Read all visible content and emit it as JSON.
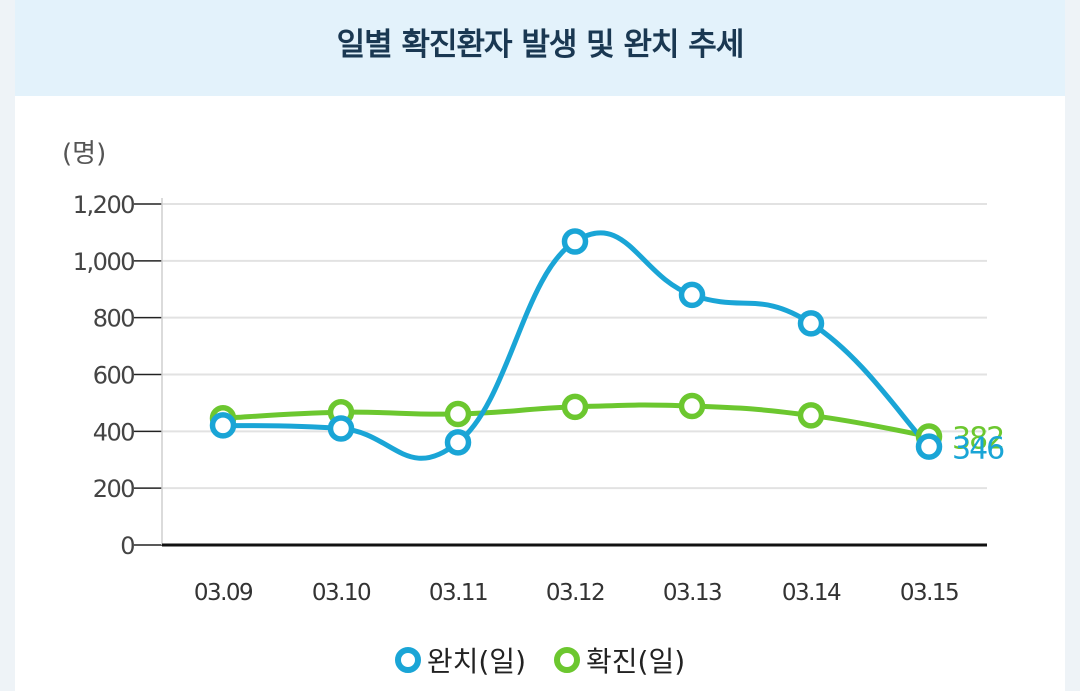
{
  "title": "일별 확진환자 발생 및 완치 추세",
  "colors": {
    "recovered": "#1aa5d6",
    "confirmed": "#6cc72f",
    "header_bg": "#e3f2fb",
    "title": "#1a3852"
  },
  "legend": [
    {
      "label": "완치(일)",
      "color": "#1aa5d6",
      "icon": "circle-marker"
    },
    {
      "label": "확진(일)",
      "color": "#6cc72f",
      "icon": "circle-marker"
    }
  ],
  "chart_data": {
    "type": "line",
    "title": "일별 확진환자 발생 및 완치 추세",
    "ylabel": "(명)",
    "xlabel": "",
    "categories": [
      "03.09",
      "03.10",
      "03.11",
      "03.12",
      "03.13",
      "03.14",
      "03.15"
    ],
    "ylim": [
      0,
      1200
    ],
    "yticks": [
      0,
      200,
      400,
      600,
      800,
      1000,
      1200
    ],
    "ytick_labels": [
      "0",
      "200",
      "400",
      "600",
      "800",
      "1,000",
      "1,200"
    ],
    "grid": true,
    "legend_position": "bottom",
    "series": [
      {
        "name": "완치(일)",
        "color": "#1aa5d6",
        "values": [
          421,
          410,
          361,
          1068,
          880,
          780,
          346
        ]
      },
      {
        "name": "확진(일)",
        "color": "#6cc72f",
        "values": [
          446,
          467,
          461,
          486,
          489,
          456,
          382
        ]
      }
    ],
    "end_labels": [
      "346",
      "382"
    ]
  }
}
